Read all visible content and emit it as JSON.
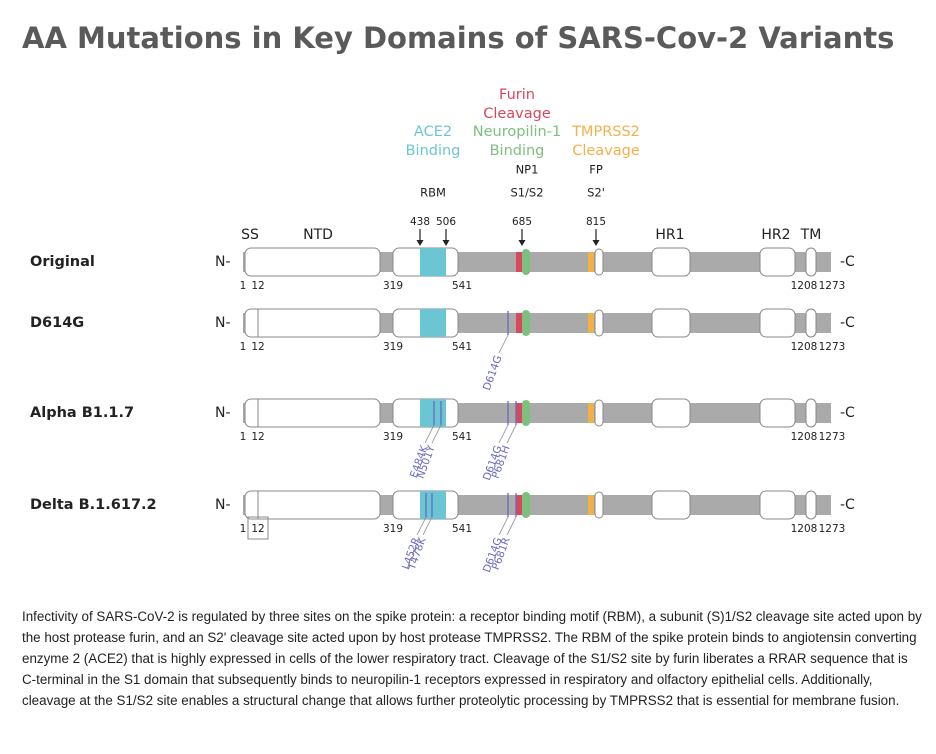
{
  "title": "AA Mutations in Key Domains of SARS-Cov-2 Variants",
  "domain_headers": [
    {
      "lines": [
        "Furin",
        "Cleavage"
      ]
    },
    {
      "lines": [
        "ACE2",
        "Binding"
      ]
    },
    {
      "lines": [
        "Neuropilin-1",
        "Binding"
      ]
    },
    {
      "lines": [
        "TMPRSS2",
        "Cleavage"
      ]
    }
  ],
  "site_labels": [
    "NP1",
    "FP",
    "RBM",
    "S1/S2",
    "S2'"
  ],
  "positions": [
    438,
    506,
    685,
    815
  ],
  "domains": [
    "SS",
    "NTD",
    "HR1",
    "HR2",
    "TM"
  ],
  "rows": [
    {
      "name": "Original",
      "n_term": "N-",
      "c_term": "-C",
      "residues": [
        1,
        12,
        319,
        541,
        1208,
        1273
      ],
      "mutations": []
    },
    {
      "name": "D614G",
      "n_term": "N-",
      "c_term": "-C",
      "residues": [
        1,
        12,
        319,
        541,
        1208,
        1273
      ],
      "mutations": [
        "D614G"
      ]
    },
    {
      "name": "Alpha B1.1.7",
      "n_term": "N-",
      "c_term": "-C",
      "residues": [
        1,
        12,
        319,
        541,
        1208,
        1273
      ],
      "mutations": [
        "E484K",
        "N501Y",
        "D614G",
        "P681H"
      ]
    },
    {
      "name": "Delta B.1.617.2",
      "n_term": "N-",
      "c_term": "-C",
      "residues": [
        1,
        12,
        319,
        541,
        1208,
        1273
      ],
      "mutations": [
        "L452R",
        "T478K",
        "D614G",
        "P681R"
      ]
    }
  ],
  "caption": "Infectivity of SARS-CoV-2 is regulated by three sites on the spike protein: a receptor binding motif (RBM), a subunit (S)1/S2 cleavage site acted upon by the host protease furin, and an S2' cleavage site acted upon by host protease TMPRSS2. The RBM of the spike protein binds to angiotensin converting enzyme 2 (ACE2) that is highly expressed in cells of the lower respiratory tract. Cleavage of the S1/S2 site by furin liberates a RRAR sequence that is C-terminal in the S1 domain that subsequently binds to neuropilin-1 receptors expressed in respiratory and olfactory epithelial cells. Additionally, cleavage at the S1/S2 site enables a structural change that allows further proteolytic processing by TMPRSS2 that is essential for membrane fusion."
}
